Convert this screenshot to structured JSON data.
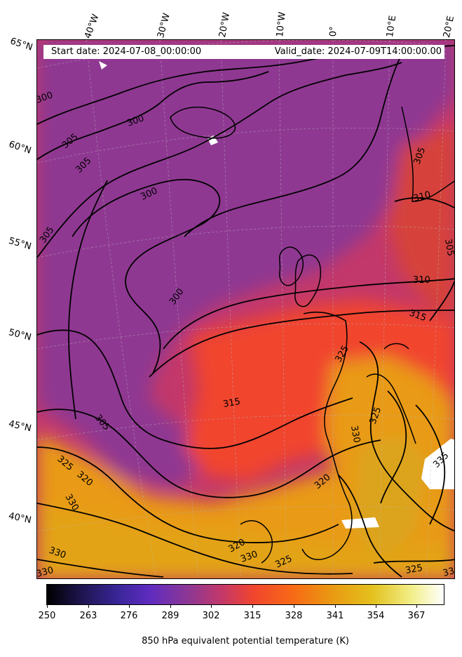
{
  "header": {
    "start_date": "Start date: 2024-07-08_00:00:00",
    "valid_date": "Valid_date: 2024-07-09T14:00:00.00"
  },
  "longitude_labels": [
    "40°W",
    "30°W",
    "20°W",
    "10°W",
    "0°",
    "10°E",
    "20°E"
  ],
  "latitude_labels": [
    "65°N",
    "60°N",
    "55°N",
    "50°N",
    "45°N",
    "40°N"
  ],
  "colorbar": {
    "ticks": [
      "250",
      "263",
      "276",
      "289",
      "302",
      "315",
      "328",
      "341",
      "354",
      "367"
    ],
    "title": "850 hPa equivalent potential temperature (K)"
  },
  "contour_labels": [
    "300",
    "300",
    "300",
    "305",
    "305",
    "305",
    "305",
    "305",
    "300",
    "310",
    "310",
    "315",
    "315",
    "320",
    "320",
    "325",
    "325",
    "325",
    "330",
    "330",
    "330",
    "330",
    "330",
    "330",
    "325",
    "325",
    "335",
    "320",
    "305"
  ],
  "colors": {
    "cold": "#8f3792",
    "mid": "#c3386a",
    "warm": "#f1452e",
    "hot": "#e99a12",
    "contour": "#000000"
  }
}
